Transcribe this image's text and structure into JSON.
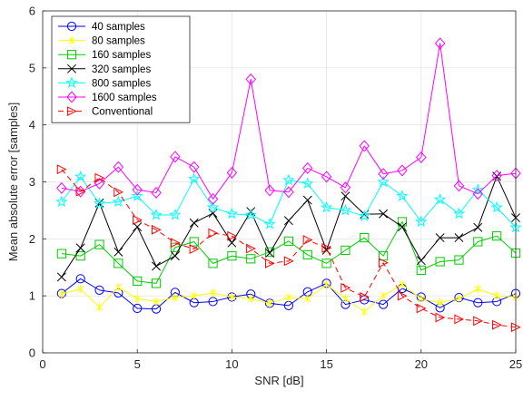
{
  "chart_data": {
    "type": "line",
    "title": "",
    "xlabel": "SNR [dB]",
    "ylabel": "Mean absolute error [samples]",
    "xlim": [
      0,
      25
    ],
    "ylim": [
      0,
      6
    ],
    "xticks": [
      0,
      5,
      10,
      15,
      20,
      25
    ],
    "yticks": [
      0,
      1,
      2,
      3,
      4,
      5,
      6
    ],
    "xtick_labels": [
      "0",
      "5",
      "10",
      "15",
      "20",
      "25"
    ],
    "ytick_labels": [
      "0",
      "1",
      "2",
      "3",
      "4",
      "5",
      "6"
    ],
    "grid": true,
    "legend_position": "top-left",
    "x": [
      1,
      2,
      3,
      4,
      5,
      6,
      7,
      8,
      9,
      10,
      11,
      12,
      13,
      14,
      15,
      16,
      17,
      18,
      19,
      20,
      21,
      22,
      23,
      24,
      25
    ],
    "series": [
      {
        "name": "40 samples",
        "color": "#0000ff",
        "marker": "circle",
        "dash": "solid",
        "values": [
          1.04,
          1.3,
          1.1,
          1.05,
          0.78,
          0.77,
          1.06,
          0.88,
          0.9,
          0.98,
          1.03,
          0.87,
          0.83,
          1.07,
          1.22,
          0.85,
          0.93,
          0.85,
          1.13,
          0.98,
          0.79,
          0.97,
          0.88,
          0.9,
          1.04
        ]
      },
      {
        "name": "80 samples",
        "color": "#ffff00",
        "marker": "asterisk",
        "dash": "solid",
        "values": [
          1.03,
          1.12,
          0.8,
          1.15,
          0.95,
          0.9,
          0.97,
          1.0,
          1.05,
          0.98,
          0.95,
          0.87,
          0.97,
          0.95,
          1.2,
          0.95,
          0.72,
          1.0,
          1.2,
          0.95,
          0.88,
          0.95,
          1.12,
          1.0,
          0.98
        ]
      },
      {
        "name": "160 samples",
        "color": "#00cc00",
        "marker": "square",
        "dash": "solid",
        "values": [
          1.74,
          1.7,
          1.9,
          1.57,
          1.26,
          1.22,
          1.85,
          1.95,
          1.57,
          1.7,
          1.65,
          1.77,
          1.96,
          1.72,
          1.57,
          1.8,
          2.02,
          1.7,
          2.3,
          1.45,
          1.6,
          1.63,
          1.95,
          2.05,
          1.75
        ]
      },
      {
        "name": "320 samples",
        "color": "#000000",
        "marker": "x",
        "dash": "solid",
        "values": [
          1.33,
          1.84,
          2.63,
          1.77,
          2.21,
          1.52,
          1.7,
          2.28,
          2.45,
          1.93,
          2.48,
          1.75,
          2.32,
          2.68,
          1.8,
          2.75,
          2.43,
          2.44,
          2.21,
          1.62,
          2.02,
          2.02,
          2.2,
          3.1,
          2.37
        ]
      },
      {
        "name": "800 samples",
        "color": "#00ffff",
        "marker": "star",
        "dash": "solid",
        "values": [
          2.65,
          3.09,
          2.62,
          2.65,
          2.75,
          2.42,
          2.42,
          3.05,
          2.55,
          2.44,
          2.42,
          2.26,
          3.03,
          2.97,
          2.55,
          2.5,
          2.4,
          3.0,
          2.75,
          2.3,
          2.69,
          2.44,
          2.86,
          2.55,
          2.2
        ]
      },
      {
        "name": "1600 samples",
        "color": "#ff00ff",
        "marker": "diamond",
        "dash": "solid",
        "values": [
          2.89,
          2.83,
          2.97,
          3.26,
          2.86,
          2.81,
          3.44,
          3.26,
          2.7,
          3.16,
          4.8,
          2.85,
          2.82,
          3.24,
          3.09,
          2.9,
          3.63,
          3.14,
          3.2,
          3.43,
          5.43,
          2.93,
          2.79,
          3.11,
          3.15
        ]
      },
      {
        "name": "Conventional",
        "color": "#ff0000",
        "marker": "triangle-right",
        "dash": "dashed",
        "values": [
          3.22,
          2.83,
          3.07,
          2.82,
          2.33,
          2.16,
          1.93,
          1.82,
          2.1,
          2.05,
          1.83,
          1.57,
          1.61,
          1.98,
          1.84,
          1.14,
          0.98,
          1.58,
          1.0,
          0.78,
          0.62,
          0.59,
          0.56,
          0.49,
          0.45
        ]
      }
    ]
  }
}
